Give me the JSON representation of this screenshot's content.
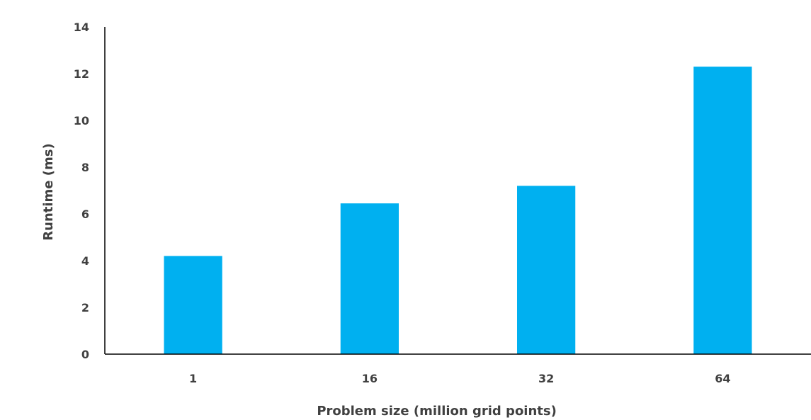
{
  "chart_data": {
    "type": "bar",
    "title": "",
    "xlabel": "Problem size (million grid points)",
    "ylabel": "Runtime (ms)",
    "categories": [
      "1",
      "16",
      "32",
      "64"
    ],
    "values": [
      4.2,
      6.45,
      7.2,
      12.3
    ],
    "ylim": [
      0,
      14
    ],
    "yticks": [
      0,
      2,
      4,
      6,
      8,
      10,
      12,
      14
    ],
    "grid": false,
    "legend": "none",
    "bar_color": "#00b0f0",
    "axis_color": "#000000",
    "text_color": "#404040"
  }
}
